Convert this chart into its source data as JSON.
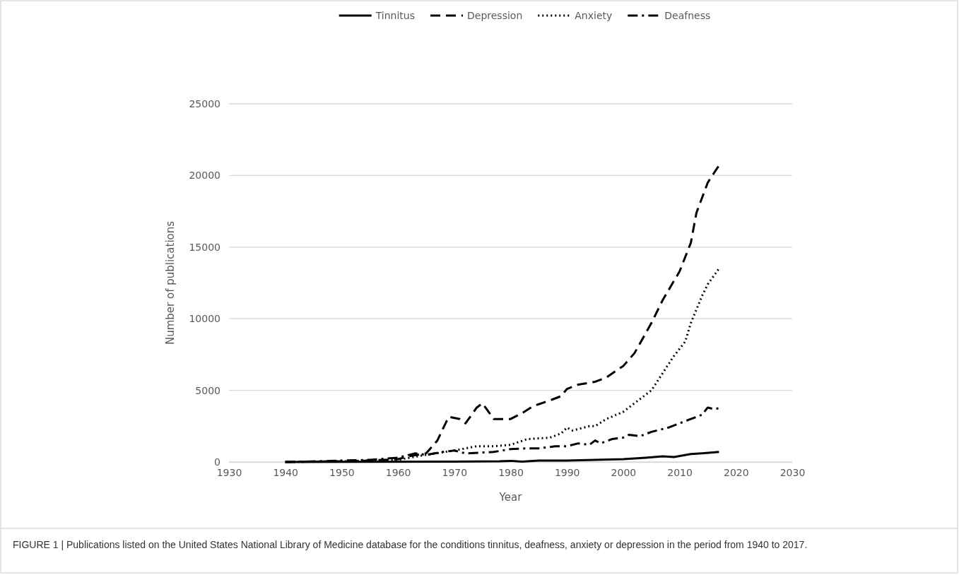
{
  "chart_data": {
    "type": "line",
    "xlabel": "Year",
    "ylabel": "Number of publications",
    "xlim": [
      1930,
      2030
    ],
    "xticks": [
      1930,
      1940,
      1950,
      1960,
      1970,
      1980,
      1990,
      2000,
      2010,
      2020,
      2030
    ],
    "ylim": [
      0,
      25000
    ],
    "yticks": [
      0,
      5000,
      10000,
      15000,
      20000,
      25000
    ],
    "grid": "y",
    "legend": "top",
    "marker": "none",
    "annotations": [
      "FIGURE 1 | Publications listed on the United States National Library of Medicine database for the conditions tinnitus, deafness, anxiety or depression in the period from 1940 to 2017."
    ],
    "series": [
      {
        "name": "Tinnitus",
        "color": "#000000",
        "line_style": "solid",
        "x": [
          1940,
          1970,
          1978,
          1980,
          1982,
          1985,
          1990,
          1995,
          2000,
          2002,
          2004,
          2007,
          2009,
          2012,
          2014,
          2017
        ],
        "values": [
          0,
          20,
          50,
          80,
          30,
          100,
          100,
          150,
          200,
          250,
          300,
          400,
          350,
          550,
          600,
          700
        ]
      },
      {
        "name": "Depression",
        "color": "#000000",
        "line_style": "dashed",
        "x": [
          1940,
          1950,
          1955,
          1960,
          1962,
          1965,
          1967,
          1969,
          1971,
          1972,
          1974,
          1975,
          1977,
          1980,
          1982,
          1984,
          1987,
          1989,
          1990,
          1992,
          1995,
          1997,
          2000,
          2002,
          2005,
          2007,
          2010,
          2012,
          2013,
          2015,
          2017
        ],
        "values": [
          0,
          50,
          100,
          200,
          400,
          600,
          1500,
          3150,
          3000,
          2700,
          3800,
          4100,
          3000,
          3000,
          3400,
          3900,
          4300,
          4600,
          5100,
          5400,
          5600,
          5900,
          6700,
          7600,
          9700,
          11300,
          13300,
          15300,
          17400,
          19500,
          20700
        ]
      },
      {
        "name": "Anxiety",
        "color": "#000000",
        "line_style": "dotted",
        "x": [
          1940,
          1950,
          1960,
          1965,
          1970,
          1974,
          1977,
          1980,
          1983,
          1987,
          1989,
          1990,
          1991,
          1994,
          1995,
          1997,
          2000,
          2002,
          2005,
          2007,
          2009,
          2011,
          2012,
          2014,
          2015,
          2017
        ],
        "values": [
          0,
          50,
          150,
          500,
          800,
          1100,
          1100,
          1200,
          1600,
          1700,
          2000,
          2400,
          2200,
          2500,
          2500,
          3000,
          3500,
          4100,
          5000,
          6200,
          7400,
          8400,
          9700,
          11600,
          12400,
          13500
        ]
      },
      {
        "name": "Deafness",
        "color": "#000000",
        "line_style": "dashdot",
        "x": [
          1940,
          1946,
          1950,
          1955,
          1960,
          1963,
          1965,
          1968,
          1970,
          1972,
          1977,
          1980,
          1983,
          1985,
          1988,
          1990,
          1992,
          1994,
          1995,
          1996,
          1998,
          2000,
          2001,
          2003,
          2005,
          2008,
          2010,
          2012,
          2014,
          2015,
          2016,
          2017
        ],
        "values": [
          0,
          50,
          100,
          150,
          300,
          600,
          500,
          700,
          800,
          600,
          700,
          900,
          950,
          950,
          1100,
          1100,
          1300,
          1200,
          1500,
          1300,
          1600,
          1700,
          1900,
          1800,
          2100,
          2400,
          2700,
          3000,
          3300,
          3800,
          3700,
          3750
        ]
      }
    ]
  }
}
